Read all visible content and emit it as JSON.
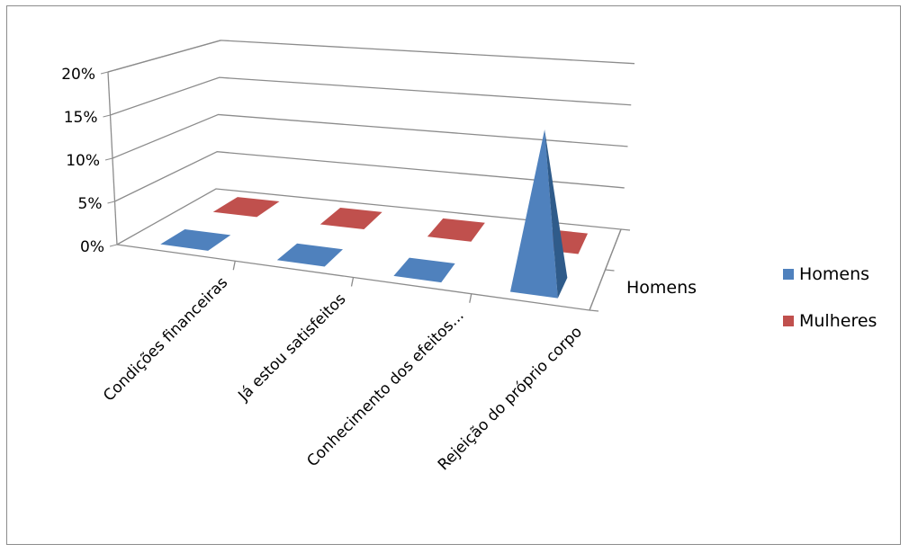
{
  "chart_data": {
    "type": "bar",
    "style": "3d-pyramid",
    "categories": [
      "Condições financeiras",
      "Já estou satisfeitos",
      "Conhecimento dos efeitos...",
      "Rejeição do próprio corpo"
    ],
    "series": [
      {
        "name": "Homens",
        "values": [
          0,
          0,
          0,
          18
        ],
        "color": "#4f81bd"
      },
      {
        "name": "Mulheres",
        "values": [
          0,
          0,
          0,
          0
        ],
        "color": "#c0504d"
      }
    ],
    "depth_labels": [
      "Homens"
    ],
    "y_ticks": [
      "0%",
      "5%",
      "10%",
      "15%",
      "20%"
    ],
    "ylim": [
      0,
      20
    ],
    "y_unit": "%",
    "grid": true,
    "legend_position": "right"
  }
}
